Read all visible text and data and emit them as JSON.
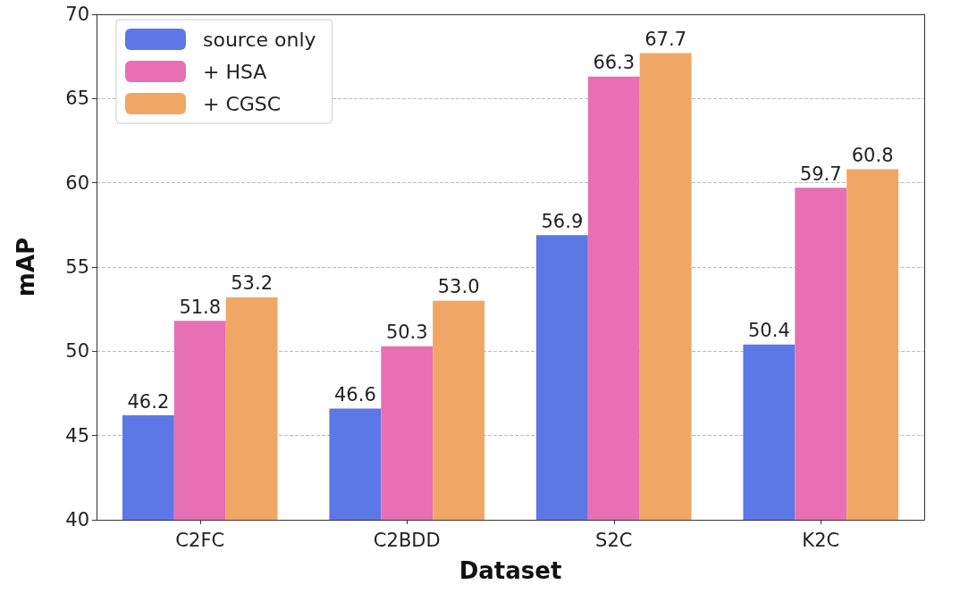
{
  "chart_data": {
    "type": "bar",
    "xlabel": "Dataset",
    "ylabel": "mAP",
    "categories": [
      "C2FC",
      "C2BDD",
      "S2C",
      "K2C"
    ],
    "series": [
      {
        "name": "source only",
        "color": "#5b78e6",
        "values": [
          46.2,
          46.6,
          56.9,
          50.4
        ],
        "value_labels": [
          "46.2",
          "46.6",
          "56.9",
          "50.4"
        ]
      },
      {
        "name": "+ HSA",
        "color": "#e86fb4",
        "values": [
          51.8,
          50.3,
          66.3,
          59.7
        ],
        "value_labels": [
          "51.8",
          "50.3",
          "66.3",
          "59.7"
        ]
      },
      {
        "name": "+ CGSC",
        "color": "#f0a765",
        "values": [
          53.2,
          53.0,
          67.7,
          60.8
        ],
        "value_labels": [
          "53.2",
          "53.0",
          "67.7",
          "60.8"
        ]
      }
    ],
    "ylim": [
      40,
      70
    ],
    "yticks": [
      40,
      45,
      50,
      55,
      60,
      65,
      70
    ],
    "grid": "y",
    "legend": "top left"
  }
}
